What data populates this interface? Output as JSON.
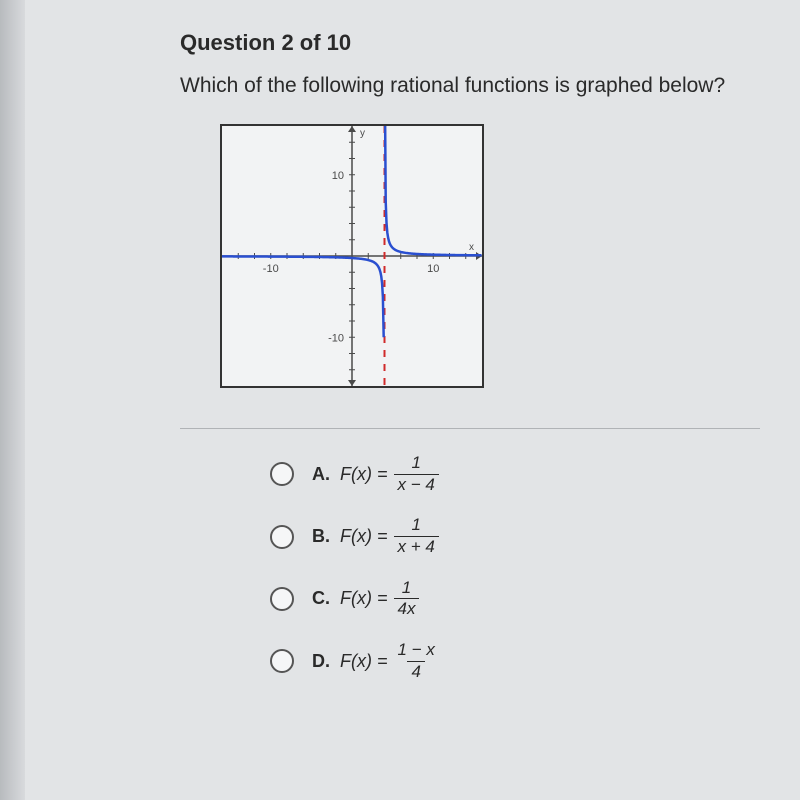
{
  "header": "Question 2 of 10",
  "prompt": "Which of the following rational functions is graphed below?",
  "graph": {
    "type": "rational-function-plot",
    "background_color": "#f2f3f4",
    "border_color": "#333333",
    "axis_color": "#4a4a4a",
    "curve_color": "#2a4fd0",
    "asymptote_color": "#d02a2a",
    "xlim": [
      -16,
      16
    ],
    "ylim": [
      -16,
      16
    ],
    "x_tick_labels": {
      "-10": "-10",
      "10": "10"
    },
    "y_tick_labels": {
      "-10": "-10",
      "10": "10"
    },
    "x_label": "x",
    "y_label": "y",
    "vertical_asymptote_x": 4,
    "horizontal_asymptote_y": 0,
    "tick_fontsize": 11,
    "label_fontsize": 10,
    "tick_step": 2,
    "curve_width": 2.5,
    "function_hint": "1/(x-4)"
  },
  "options": [
    {
      "letter": "A.",
      "lhs": "F(x) = ",
      "num": "1",
      "den": "x − 4"
    },
    {
      "letter": "B.",
      "lhs": "F(x) = ",
      "num": "1",
      "den": "x + 4"
    },
    {
      "letter": "C.",
      "lhs": "F(x) = ",
      "num": "1",
      "den": "4x"
    },
    {
      "letter": "D.",
      "lhs": "F(x) = ",
      "num": "1 − x",
      "den": "4"
    }
  ]
}
